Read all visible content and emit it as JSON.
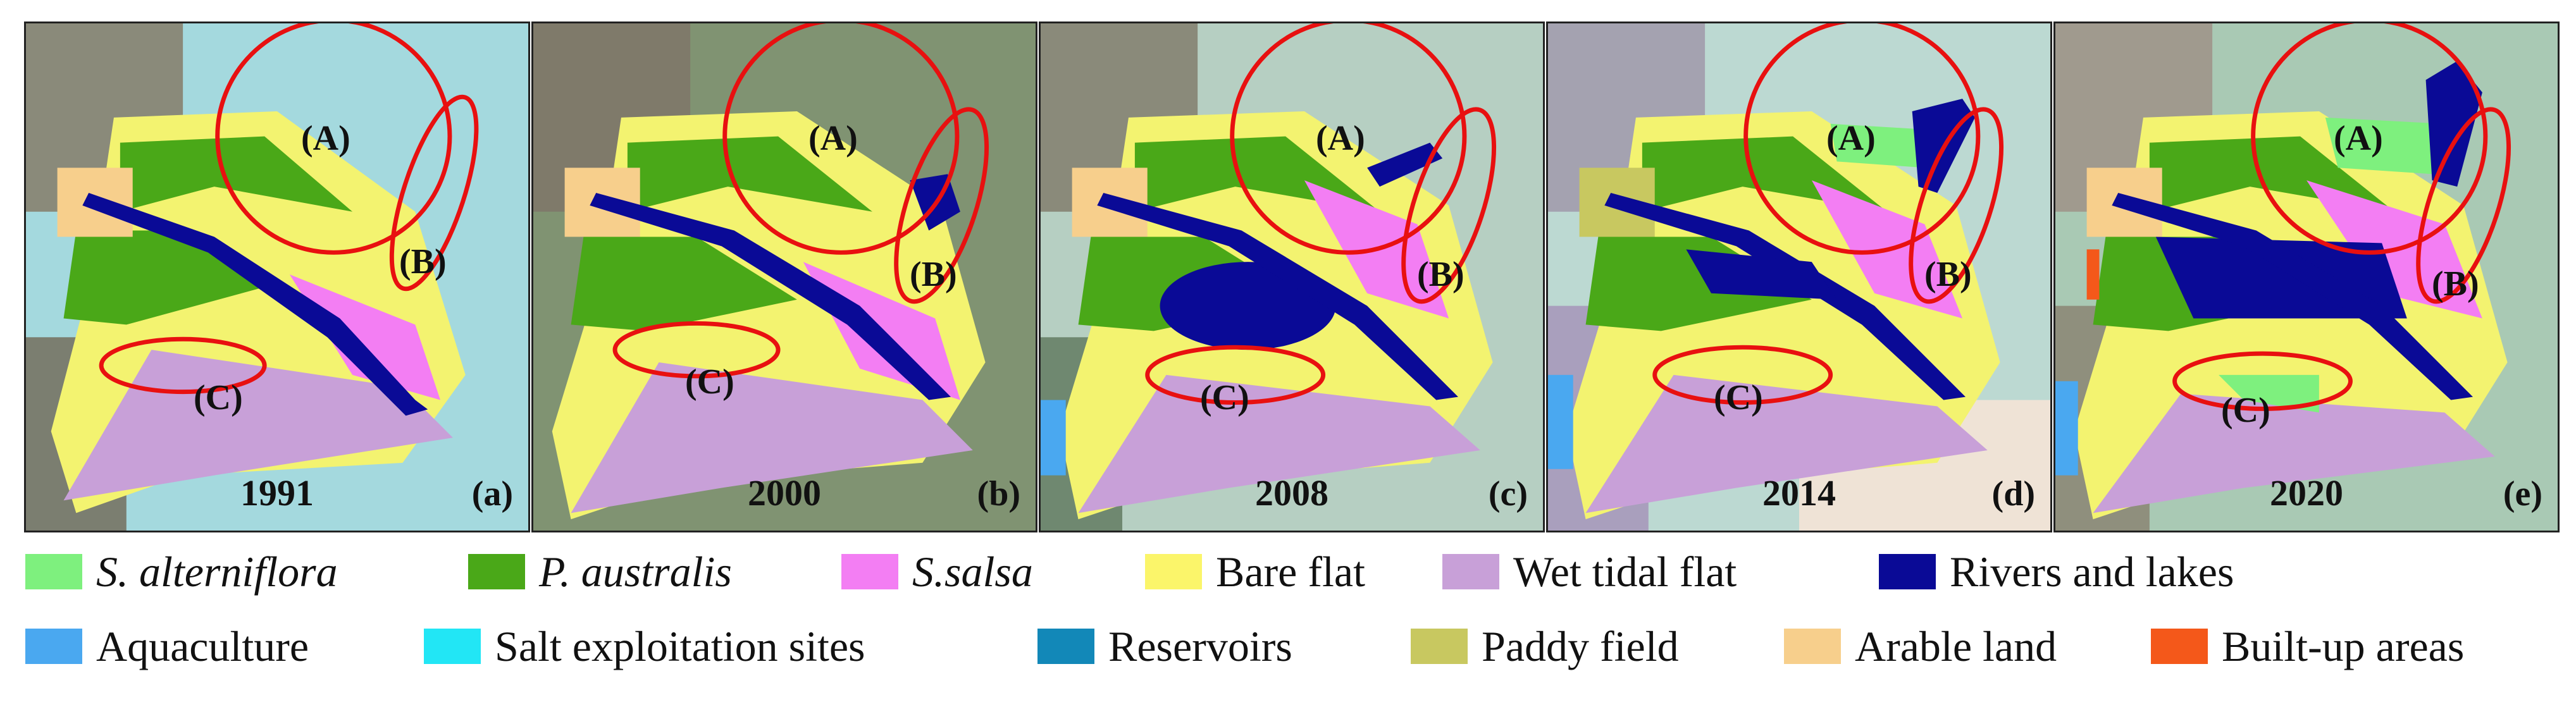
{
  "panels": [
    {
      "year": "1991",
      "letter": "(a)"
    },
    {
      "year": "2000",
      "letter": "(b)"
    },
    {
      "year": "2008",
      "letter": "(c)"
    },
    {
      "year": "2014",
      "letter": "(d)"
    },
    {
      "year": "2020",
      "letter": "(e)"
    }
  ],
  "zone_labels": {
    "a": "(A)",
    "b": "(B)",
    "c": "(C)"
  },
  "legend": {
    "row1": [
      {
        "label": "S. alterniflora",
        "color": "#7ef07e",
        "italic": true
      },
      {
        "label": "P. australis",
        "color": "#4aa818",
        "italic": true
      },
      {
        "label": "S.salsa",
        "color": "#f37ef3",
        "italic": true
      },
      {
        "label": "Bare flat",
        "color": "#fbf56a",
        "italic": false
      },
      {
        "label": "Wet tidal flat",
        "color": "#c8a0d8",
        "italic": false
      },
      {
        "label": "Rivers and lakes",
        "color": "#0a0a96",
        "italic": false
      }
    ],
    "row2": [
      {
        "label": "Aquaculture",
        "color": "#4aa8f0",
        "italic": false
      },
      {
        "label": "Salt exploitation sites",
        "color": "#22e6f5",
        "italic": false
      },
      {
        "label": "Reservoirs",
        "color": "#1288b8",
        "italic": false
      },
      {
        "label": "Paddy field",
        "color": "#c8c860",
        "italic": false
      },
      {
        "label": "Arable land",
        "color": "#f7cf8c",
        "italic": false
      },
      {
        "label": "Built-up areas",
        "color": "#f4581a",
        "italic": false
      }
    ]
  },
  "colors": {
    "circle_outline": "#e81010",
    "sea_1991": "#9fd6dc",
    "sea_2000": "#8f8a62",
    "sea_2008": "#b6cfc2",
    "sea_2014": "#b8d8d4",
    "sea_2020": "#a9c9b4"
  }
}
